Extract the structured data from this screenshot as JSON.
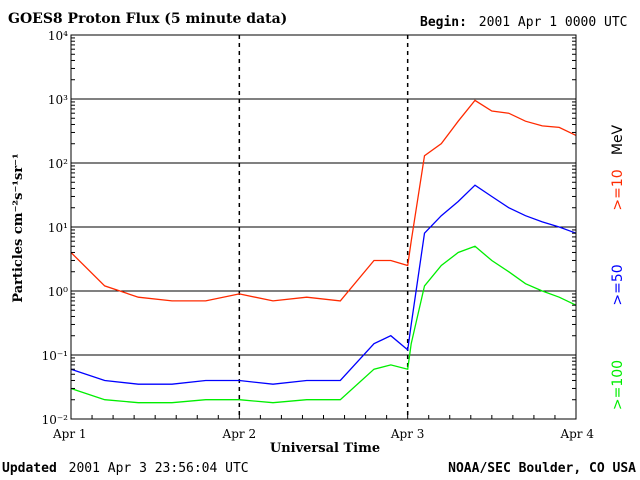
{
  "header": {
    "title": "GOES8 Proton Flux (5 minute data)",
    "begin_label": "Begin:",
    "begin_value": "2001 Apr 1 0000 UTC"
  },
  "footer": {
    "updated_label": "Updated",
    "updated_value": "2001 Apr  3 23:56:04 UTC",
    "credit": "NOAA/SEC Boulder, CO USA"
  },
  "chart_data": {
    "type": "line",
    "title": "GOES8 Proton Flux (5 minute data)",
    "xlabel": "Universal Time",
    "ylabel": "Particles cm⁻²s⁻¹sr⁻¹",
    "y_scale": "log",
    "ylim": [
      0.01,
      10000
    ],
    "xlim": [
      "2001-04-01 00:00",
      "2001-04-04 00:00"
    ],
    "x_ticks": [
      "Apr 1",
      "Apr 2",
      "Apr 3",
      "Apr 4"
    ],
    "y_ticks": [
      "10⁻²",
      "10⁻¹",
      "10⁰",
      "10¹",
      "10²",
      "10³",
      "10⁴"
    ],
    "grid": "horizontal at each decade; dashed day boundaries",
    "legend_position": "right, vertical",
    "unit_label": "MeV",
    "series": [
      {
        "name": ">=10",
        "color": "#ff2a00",
        "x": [
          "2001-04-01 00:00",
          "2001-04-01 04:48",
          "2001-04-01 09:36",
          "2001-04-01 14:24",
          "2001-04-01 19:12",
          "2001-04-02 00:00",
          "2001-04-02 04:48",
          "2001-04-02 09:36",
          "2001-04-02 14:24",
          "2001-04-02 19:12",
          "2001-04-02 21:36",
          "2001-04-03 00:00",
          "2001-04-03 00:30",
          "2001-04-03 02:24",
          "2001-04-03 04:48",
          "2001-04-03 07:12",
          "2001-04-03 09:36",
          "2001-04-03 12:00",
          "2001-04-03 14:24",
          "2001-04-03 16:48",
          "2001-04-03 19:12",
          "2001-04-03 21:36",
          "2001-04-04 00:00"
        ],
        "values": [
          4,
          1.2,
          0.8,
          0.7,
          0.7,
          0.9,
          0.7,
          0.8,
          0.7,
          3,
          3,
          2.5,
          6,
          130,
          200,
          450,
          950,
          650,
          600,
          450,
          380,
          360,
          270
        ]
      },
      {
        "name": ">=50",
        "color": "#0000ff",
        "x": [
          "2001-04-01 00:00",
          "2001-04-01 04:48",
          "2001-04-01 09:36",
          "2001-04-01 14:24",
          "2001-04-01 19:12",
          "2001-04-02 00:00",
          "2001-04-02 04:48",
          "2001-04-02 09:36",
          "2001-04-02 14:24",
          "2001-04-02 19:12",
          "2001-04-02 21:36",
          "2001-04-03 00:00",
          "2001-04-03 00:30",
          "2001-04-03 02:24",
          "2001-04-03 04:48",
          "2001-04-03 07:12",
          "2001-04-03 09:36",
          "2001-04-03 12:00",
          "2001-04-03 14:24",
          "2001-04-03 16:48",
          "2001-04-03 19:12",
          "2001-04-03 21:36",
          "2001-04-04 00:00"
        ],
        "values": [
          0.06,
          0.04,
          0.035,
          0.035,
          0.04,
          0.04,
          0.035,
          0.04,
          0.04,
          0.15,
          0.2,
          0.12,
          0.3,
          8,
          15,
          25,
          45,
          30,
          20,
          15,
          12,
          10,
          8
        ]
      },
      {
        "name": ">=100",
        "color": "#00ee00",
        "x": [
          "2001-04-01 00:00",
          "2001-04-01 04:48",
          "2001-04-01 09:36",
          "2001-04-01 14:24",
          "2001-04-01 19:12",
          "2001-04-02 00:00",
          "2001-04-02 04:48",
          "2001-04-02 09:36",
          "2001-04-02 14:24",
          "2001-04-02 19:12",
          "2001-04-02 21:36",
          "2001-04-03 00:00",
          "2001-04-03 00:30",
          "2001-04-03 02:24",
          "2001-04-03 04:48",
          "2001-04-03 07:12",
          "2001-04-03 09:36",
          "2001-04-03 12:00",
          "2001-04-03 14:24",
          "2001-04-03 16:48",
          "2001-04-03 19:12",
          "2001-04-03 21:36",
          "2001-04-04 00:00"
        ],
        "values": [
          0.03,
          0.02,
          0.018,
          0.018,
          0.02,
          0.02,
          0.018,
          0.02,
          0.02,
          0.06,
          0.07,
          0.06,
          0.15,
          1.2,
          2.5,
          4,
          5,
          3,
          2,
          1.3,
          1,
          0.8,
          0.6
        ]
      }
    ]
  }
}
